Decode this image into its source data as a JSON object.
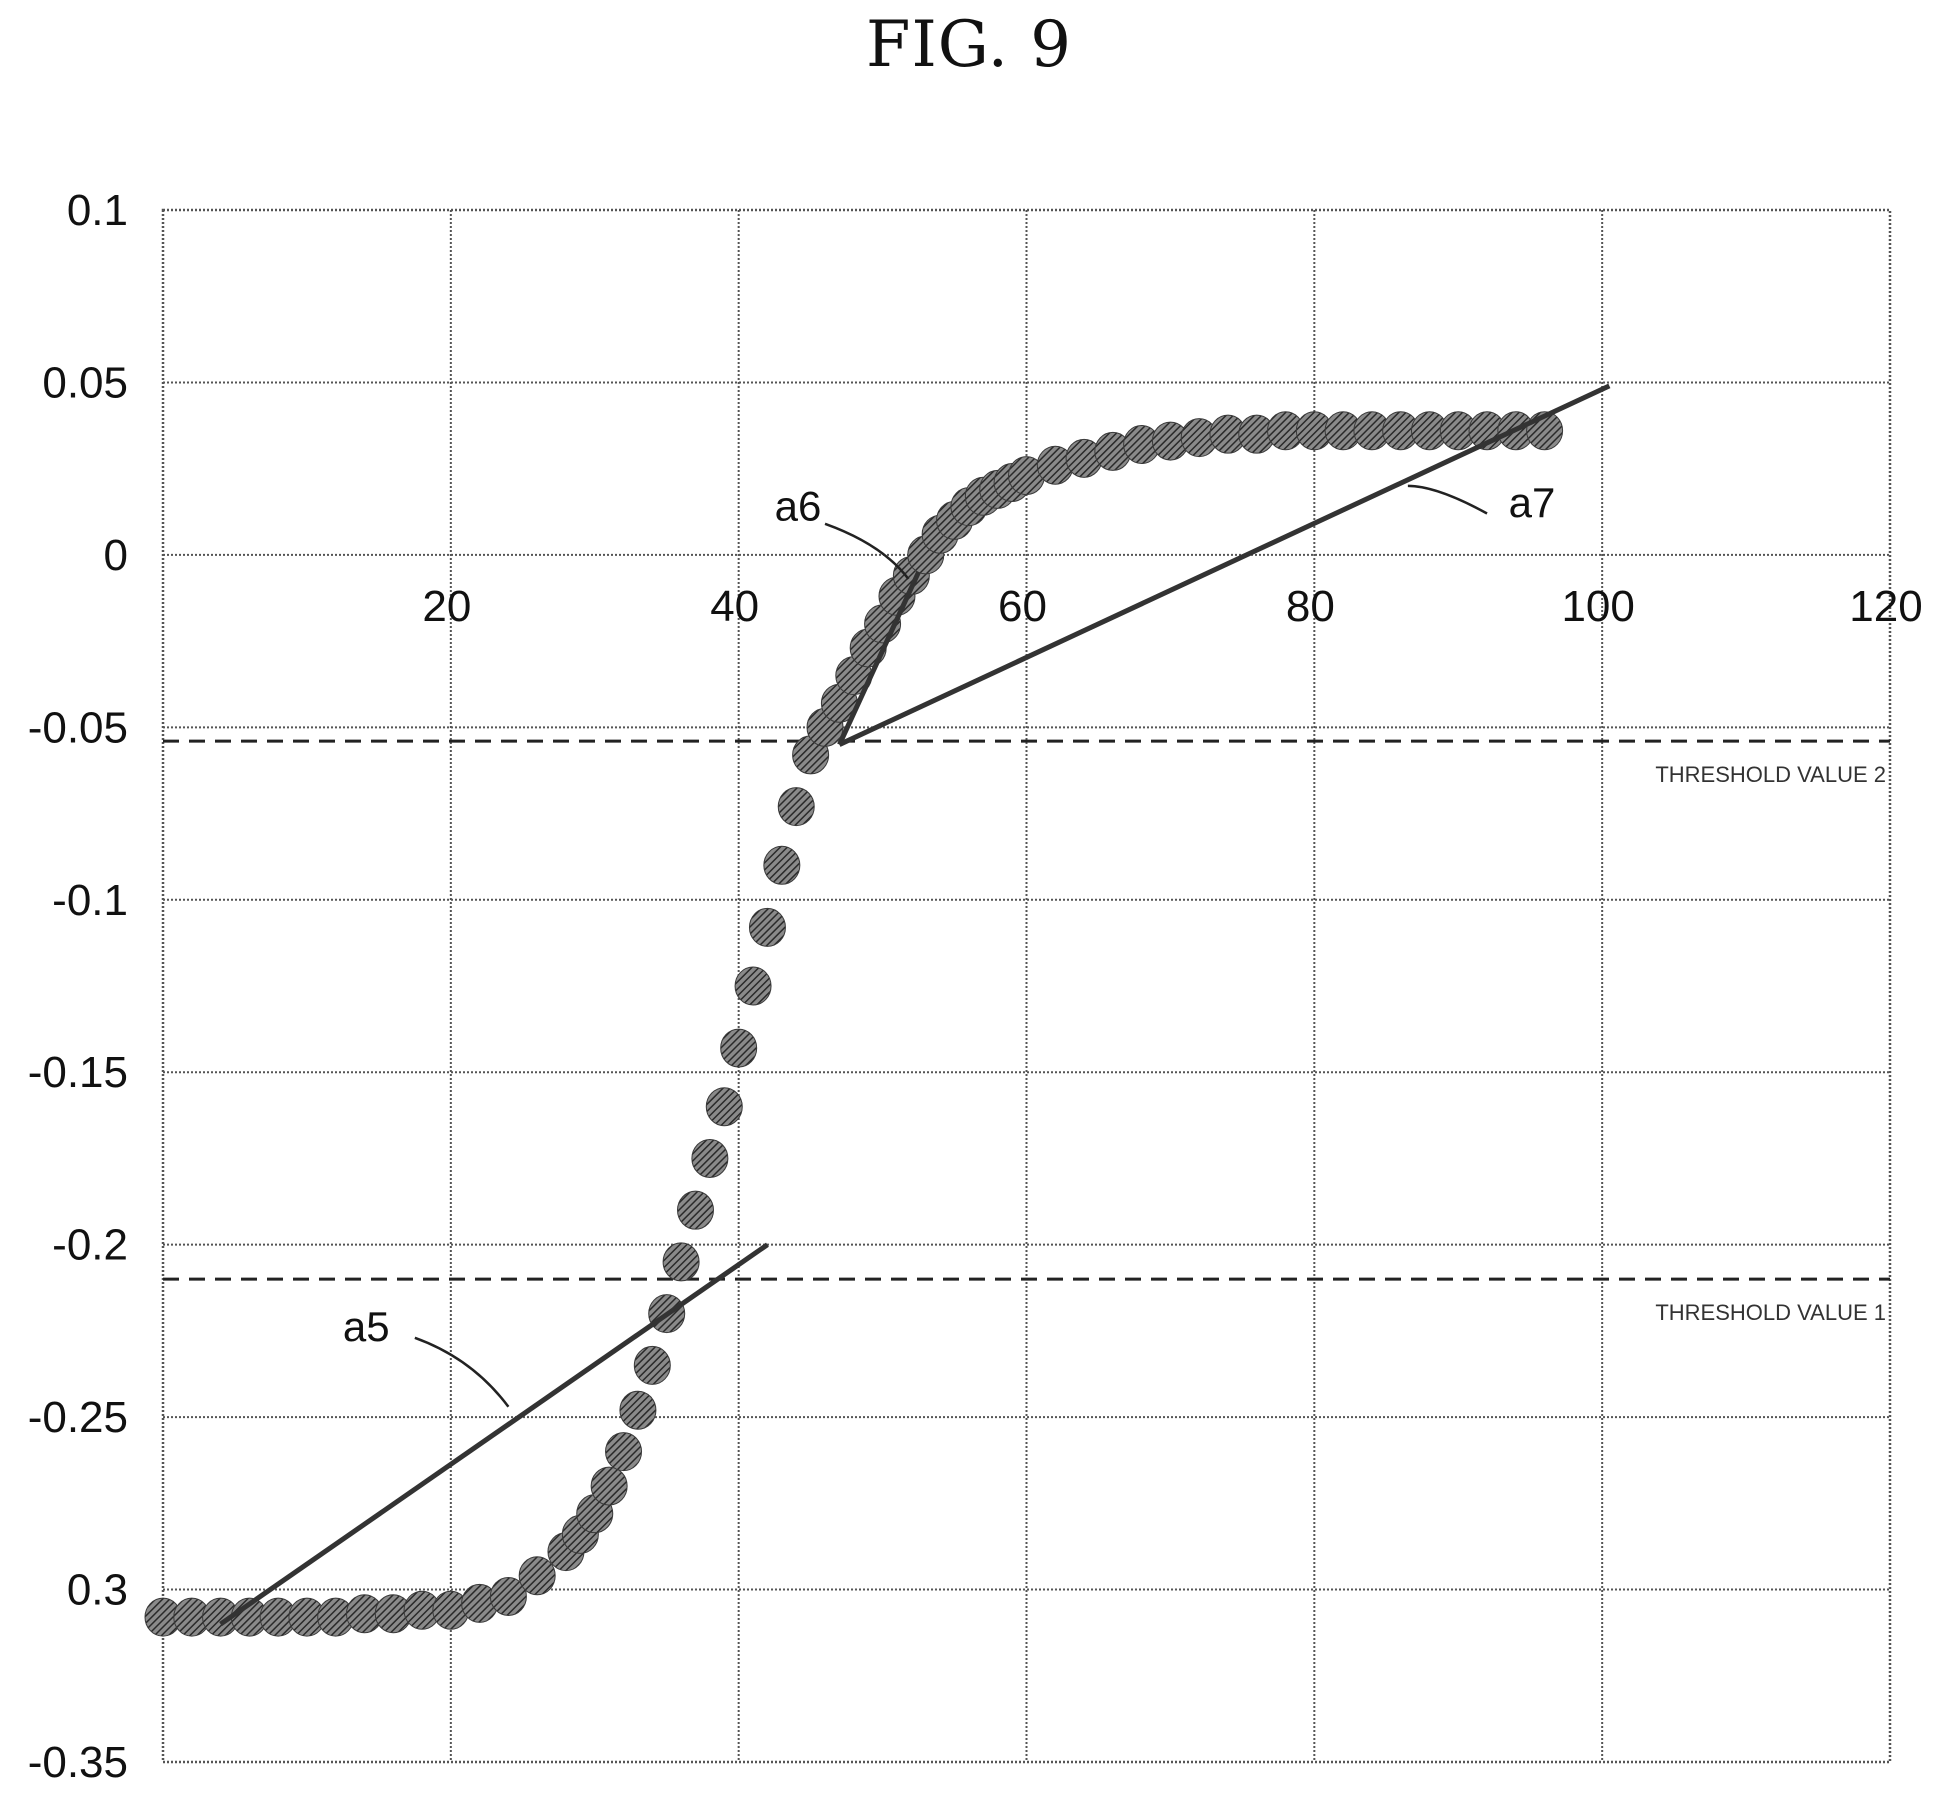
{
  "title": "FIG. 9",
  "colors": {
    "grid": "#555555",
    "data_fill": "#4a4a4a",
    "line": "#333333",
    "threshold": "#222222"
  },
  "chart_data": {
    "type": "scatter",
    "xlim": [
      0,
      120
    ],
    "ylim": [
      -0.35,
      0.1
    ],
    "x_ticks": [
      {
        "value": 20,
        "label": "20"
      },
      {
        "value": 40,
        "label": "40"
      },
      {
        "value": 60,
        "label": "60"
      },
      {
        "value": 80,
        "label": "80"
      },
      {
        "value": 100,
        "label": "100"
      },
      {
        "value": 120,
        "label": "120"
      }
    ],
    "y_ticks": [
      {
        "value": 0.1,
        "label": "0.1"
      },
      {
        "value": 0.05,
        "label": "0.05"
      },
      {
        "value": 0,
        "label": "0"
      },
      {
        "value": -0.05,
        "label": "-0.05"
      },
      {
        "value": -0.1,
        "label": "-0.1"
      },
      {
        "value": -0.15,
        "label": "-0.15"
      },
      {
        "value": -0.2,
        "label": "-0.2"
      },
      {
        "value": -0.25,
        "label": "-0.25"
      },
      {
        "value": -0.3,
        "label": "0.3"
      },
      {
        "value": -0.35,
        "label": "-0.35"
      }
    ],
    "grid": true,
    "series": [
      {
        "x": [
          0,
          2,
          4,
          6,
          8,
          10,
          12,
          14,
          16,
          18,
          20,
          22,
          24,
          26,
          28,
          29,
          30,
          31,
          32,
          33,
          34,
          35,
          36,
          37,
          38,
          39,
          40,
          41,
          42,
          43,
          44,
          45,
          46,
          47,
          48,
          49,
          50,
          51,
          52,
          53,
          54,
          55,
          56,
          57,
          58,
          59,
          60,
          62,
          64,
          66,
          68,
          70,
          72,
          74,
          76,
          78,
          80,
          82,
          84,
          86,
          88,
          90,
          92,
          94,
          96
        ],
        "y": [
          -0.308,
          -0.308,
          -0.308,
          -0.308,
          -0.308,
          -0.308,
          -0.308,
          -0.307,
          -0.307,
          -0.306,
          -0.306,
          -0.304,
          -0.302,
          -0.296,
          -0.289,
          -0.284,
          -0.278,
          -0.27,
          -0.26,
          -0.248,
          -0.235,
          -0.22,
          -0.205,
          -0.19,
          -0.175,
          -0.16,
          -0.143,
          -0.125,
          -0.108,
          -0.09,
          -0.073,
          -0.058,
          -0.05,
          -0.043,
          -0.035,
          -0.027,
          -0.02,
          -0.012,
          -0.006,
          0,
          0.006,
          0.01,
          0.014,
          0.017,
          0.019,
          0.021,
          0.023,
          0.026,
          0.028,
          0.03,
          0.032,
          0.033,
          0.034,
          0.035,
          0.035,
          0.036,
          0.036,
          0.036,
          0.036,
          0.036,
          0.036,
          0.036,
          0.036,
          0.036,
          0.036
        ]
      }
    ],
    "fit_lines": [
      {
        "label": "a5",
        "x": [
          4,
          42
        ],
        "y": [
          -0.31,
          -0.2
        ]
      },
      {
        "label": "a6",
        "x": [
          47,
          52.5
        ],
        "y": [
          -0.055,
          -0.005
        ]
      },
      {
        "label": "a7",
        "x": [
          47,
          100.5
        ],
        "y": [
          -0.055,
          0.049
        ]
      }
    ],
    "thresholds": [
      {
        "label": "THRESHOLD VALUE 2",
        "y": -0.054
      },
      {
        "label": "THRESHOLD VALUE 1",
        "y": -0.21
      }
    ],
    "annotations": [
      {
        "label": "a6",
        "text_pos": [
          42.5,
          0.01
        ],
        "leader": [
          [
            46,
            0.009
          ],
          [
            50,
            0.003
          ],
          [
            51.8,
            -0.007
          ]
        ]
      },
      {
        "label": "a7",
        "text_pos": [
          93.5,
          0.011
        ],
        "leader": [
          [
            92,
            0.012
          ],
          [
            88.5,
            0.02
          ],
          [
            86.5,
            0.02
          ]
        ]
      },
      {
        "label": "a5",
        "text_pos": [
          12.5,
          -0.228
        ],
        "leader": [
          [
            17.5,
            -0.227
          ],
          [
            21.5,
            -0.233
          ],
          [
            24,
            -0.247
          ]
        ]
      }
    ]
  }
}
